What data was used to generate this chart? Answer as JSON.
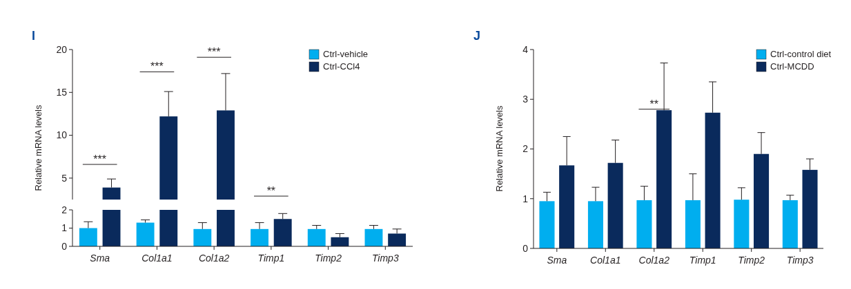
{
  "chart_data": [
    {
      "type": "bar",
      "title": "I",
      "ylabel": "Relative mRNA levels",
      "categories": [
        null,
        null,
        null
      ],
      "ylim": [
        2.5,
        20
      ],
      "yticks": [
        5,
        10,
        15,
        20
      ],
      "tick_labels": "y",
      "series": [
        {
          "color": "#0a2a5c",
          "values": [
            3.9,
            12.2,
            12.9
          ],
          "errors": [
            [
              3.9,
              4.9
            ],
            [
              12.2,
              15.1
            ],
            [
              12.9,
              17.2
            ]
          ]
        }
      ],
      "annotations": [
        "***",
        "***",
        "***",
        "**"
      ]
    },
    {
      "type": "bar",
      "categories": [
        "Sma",
        "Col1a1",
        "Col1a2",
        "Timp1",
        "Timp2",
        "Timp3"
      ],
      "ylim": [
        0,
        2
      ],
      "yticks": [
        0,
        1,
        2
      ],
      "legend": "top right",
      "series": [
        {
          "name": "Ctrl-vehicle",
          "color": "#00aeef",
          "values": [
            1.0,
            1.3,
            0.95,
            0.95,
            0.95,
            0.95
          ],
          "errors": [
            [
              1.0,
              1.35
            ],
            [
              1.3,
              1.45
            ],
            [
              0.95,
              1.3
            ],
            [
              0.95,
              1.3
            ],
            [
              0.95,
              1.15
            ],
            [
              0.95,
              1.15
            ]
          ]
        },
        {
          "name": "Ctrl-CCl4",
          "color": "#0a2a5c",
          "values": [
            2,
            2,
            2,
            1.5,
            0.5,
            0.7
          ],
          "errors": [
            null,
            null,
            null,
            [
              1.5,
              1.8
            ],
            [
              0.5,
              0.7
            ],
            [
              0.7,
              0.95
            ]
          ]
        }
      ]
    },
    {
      "type": "bar",
      "title": "J",
      "ylabel": "Relative mRNA levels",
      "categories": [
        "Sma",
        "Col1a1",
        "Col1a2",
        "Timp1",
        "Timp2",
        "Timp3"
      ],
      "ylim": [
        0,
        4
      ],
      "yticks": [
        0,
        1,
        2,
        3,
        4
      ],
      "legend": "top right",
      "series": [
        {
          "name": "Ctrl-control diet",
          "color": "#00aeef",
          "values": [
            0.95,
            0.95,
            0.97,
            0.97,
            0.98,
            0.97
          ],
          "errors": [
            [
              0.95,
              1.13
            ],
            [
              0.95,
              1.23
            ],
            [
              0.97,
              1.25
            ],
            [
              0.97,
              1.5
            ],
            [
              0.98,
              1.22
            ],
            [
              0.97,
              1.07
            ]
          ]
        },
        {
          "name": "Ctrl-MCDD",
          "color": "#0a2a5c",
          "values": [
            1.67,
            1.72,
            2.78,
            2.73,
            1.9,
            1.58
          ],
          "errors": [
            [
              1.67,
              2.25
            ],
            [
              1.72,
              2.18
            ],
            [
              2.78,
              3.73
            ],
            [
              2.73,
              3.35
            ],
            [
              1.9,
              2.33
            ],
            [
              1.58,
              1.8
            ]
          ]
        }
      ],
      "annotations": [
        "**"
      ]
    }
  ]
}
